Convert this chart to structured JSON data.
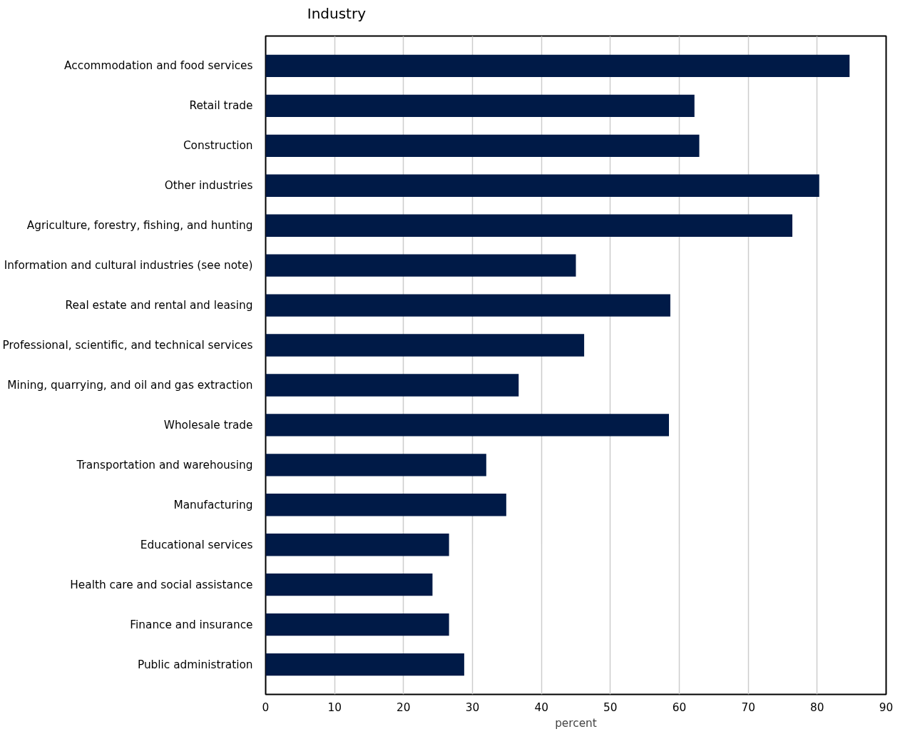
{
  "chart_data": {
    "type": "bar",
    "orientation": "horizontal",
    "ylabel": "Industry",
    "xlabel": "percent",
    "categories": [
      "Accommodation and food services",
      "Retail trade",
      "Construction",
      "Other industries",
      "Agriculture, forestry, fishing, and hunting",
      "Information and cultural industries (see note)",
      "Real estate and rental and leasing",
      "Professional, scientific, and technical services",
      "Mining, quarrying, and oil and gas extraction",
      "Wholesale trade",
      "Transportation and warehousing",
      "Manufacturing",
      "Educational services",
      "Health care and social assistance",
      "Finance and insurance",
      "Public administration"
    ],
    "values": [
      84.7,
      62.2,
      62.9,
      80.3,
      76.4,
      45.0,
      58.7,
      46.2,
      36.7,
      58.5,
      32.0,
      34.9,
      26.6,
      24.2,
      26.6,
      28.8
    ],
    "color": "#001a47",
    "xlim": [
      0,
      90
    ],
    "xticks": [
      0,
      10,
      20,
      30,
      40,
      50,
      60,
      70,
      80,
      90
    ],
    "grid": "x"
  }
}
